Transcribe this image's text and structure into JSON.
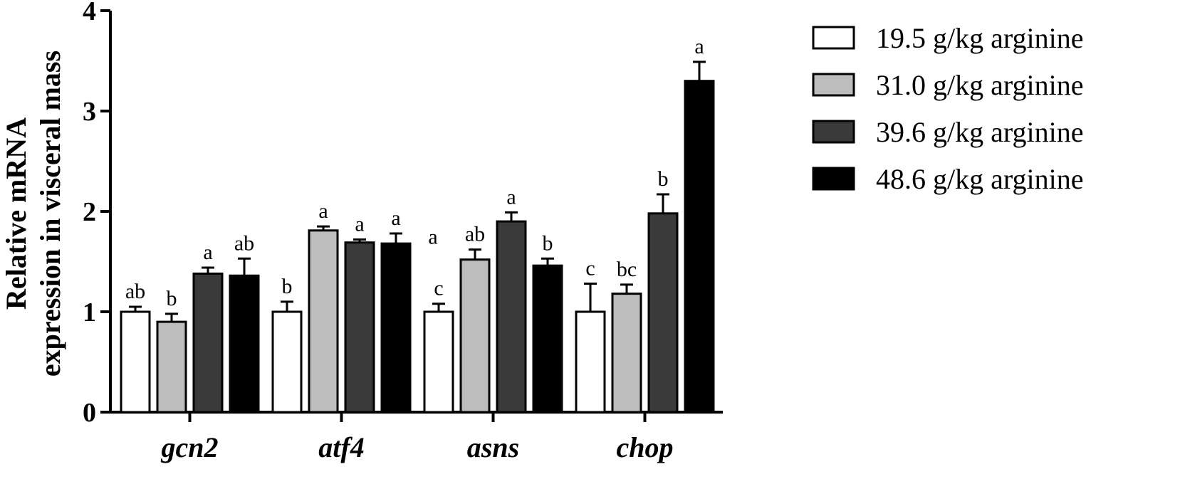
{
  "chart_data": {
    "type": "bar",
    "ylabel_lines": [
      "Relative mRNA",
      "expression in visceral mass"
    ],
    "ylim": [
      0,
      4
    ],
    "yticks": [
      0,
      1,
      2,
      3,
      4
    ],
    "categories": [
      "gcn2",
      "atf4",
      "asns",
      "chop"
    ],
    "series": [
      {
        "name": "19.5 g/kg arginine",
        "color": "#ffffff",
        "values": [
          1.0,
          1.0,
          1.0,
          1.0
        ],
        "errors": [
          0.05,
          0.1,
          0.08,
          0.28
        ],
        "labels": [
          "ab",
          "b",
          "c",
          "c"
        ]
      },
      {
        "name": "31.0 g/kg arginine",
        "color": "#bdbdbd",
        "values": [
          0.9,
          1.81,
          1.52,
          1.18
        ],
        "errors": [
          0.08,
          0.04,
          0.1,
          0.09
        ],
        "labels": [
          "b",
          "a",
          "ab",
          "bc"
        ]
      },
      {
        "name": "39.6 g/kg arginine",
        "color": "#3a3a3a",
        "values": [
          1.38,
          1.69,
          1.9,
          1.98
        ],
        "errors": [
          0.06,
          0.03,
          0.09,
          0.19
        ],
        "labels": [
          "a",
          "a",
          "a",
          "b"
        ]
      },
      {
        "name": "48.6 g/kg arginine",
        "color": "#000000",
        "values": [
          1.36,
          1.68,
          1.46,
          3.3
        ],
        "errors": [
          0.17,
          0.1,
          0.07,
          0.19
        ],
        "labels": [
          "ab",
          "a",
          "b",
          "a"
        ]
      }
    ],
    "extra_annotations": [
      {
        "text": "a",
        "category": "atf4",
        "position": "right-of-group",
        "y": 1.75
      }
    ],
    "legend_position": "right",
    "grid": false
  }
}
